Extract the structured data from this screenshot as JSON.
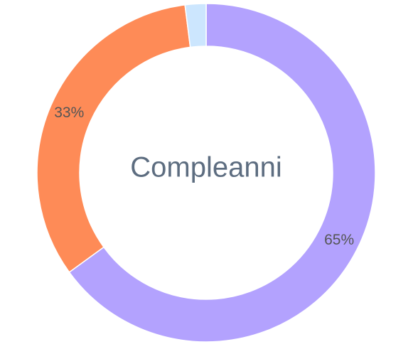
{
  "chart_data": {
    "type": "donut",
    "title": "Compleanni",
    "values": [
      65,
      33,
      2
    ],
    "value_labels": [
      "65%",
      "33%",
      null
    ],
    "colors": [
      "#b3a2fe",
      "#fe8b57",
      "#cce6fe"
    ]
  }
}
